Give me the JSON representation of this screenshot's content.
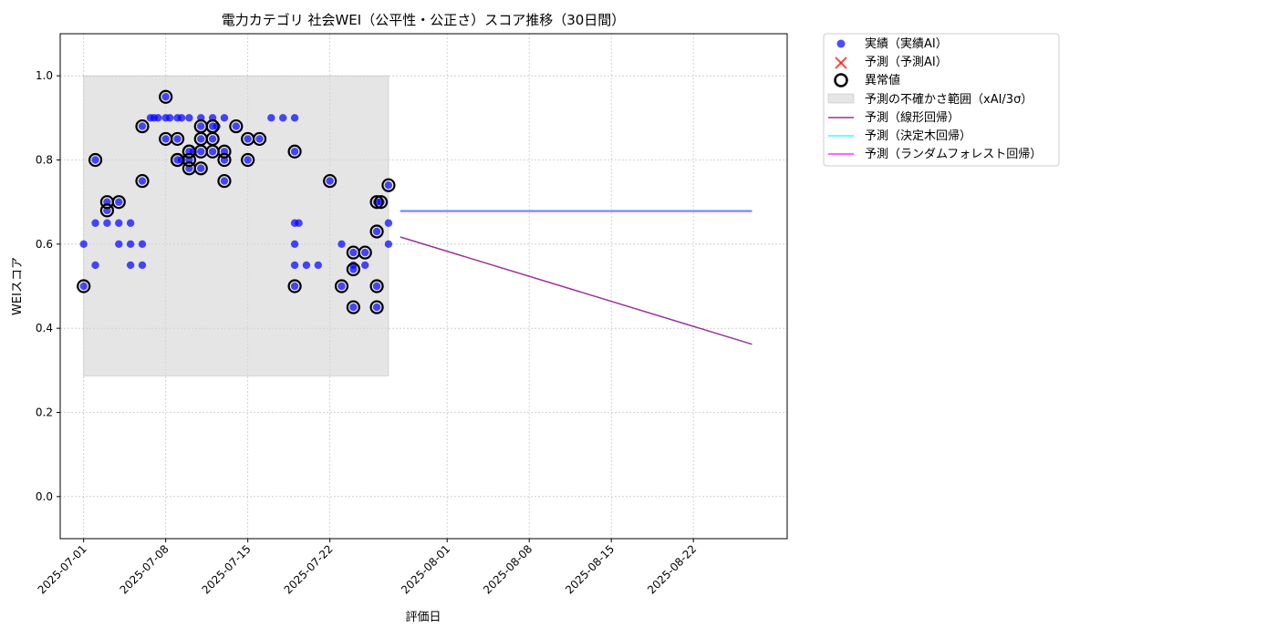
{
  "chart_data": {
    "type": "scatter",
    "title": "電力カテゴリ 社会WEI（公平性・公正さ）スコア推移（30日間）",
    "xlabel": "評価日",
    "ylabel": "WEIスコア",
    "x_ticks": [
      "2025-07-01",
      "2025-07-08",
      "2025-07-15",
      "2025-07-22",
      "2025-08-01",
      "2025-08-08",
      "2025-08-15",
      "2025-08-22"
    ],
    "xlim": [
      "2025-06-29",
      "2025-08-30"
    ],
    "ylim": [
      -0.1,
      1.1
    ],
    "y_ticks": [
      "0.0",
      "0.2",
      "0.4",
      "0.6",
      "0.8",
      "1.0"
    ],
    "grid": true,
    "legend_position": "outside-upper-right",
    "legend": {
      "actual": "実績（実績AI）",
      "predicted": "予測（予測AI）",
      "anomaly": "異常値",
      "band": "予測の不確かさ範囲（xAI/3σ）",
      "linear": "予測（線形回帰）",
      "tree": "予測（決定木回帰）",
      "forest": "予測（ランダムフォレスト回帰）"
    },
    "colors": {
      "actual": "#0000ff",
      "predicted": "#ff0000",
      "anomaly": "#000000",
      "band": "#d3d3d3",
      "linear": "#800080",
      "tree": "#00ffff",
      "forest": "#ff00ff"
    },
    "uncertainty_band": {
      "x": [
        "2025-07-01",
        "2025-07-27"
      ],
      "y": [
        0.287,
        1.0
      ]
    },
    "series": [
      {
        "name": "実績（実績AI）",
        "points": [
          [
            "2025-07-01",
            0.5
          ],
          [
            "2025-07-01",
            0.6
          ],
          [
            "2025-07-02",
            0.8
          ],
          [
            "2025-07-02",
            0.55
          ],
          [
            "2025-07-02",
            0.65
          ],
          [
            "2025-07-03",
            0.68
          ],
          [
            "2025-07-03",
            0.7
          ],
          [
            "2025-07-03",
            0.65
          ],
          [
            "2025-07-04",
            0.6
          ],
          [
            "2025-07-04",
            0.7
          ],
          [
            "2025-07-04",
            0.65
          ],
          [
            "2025-07-05",
            0.55
          ],
          [
            "2025-07-05",
            0.65
          ],
          [
            "2025-07-05",
            0.6
          ],
          [
            "2025-07-06",
            0.6
          ],
          [
            "2025-07-06",
            0.75
          ],
          [
            "2025-07-06",
            0.55
          ],
          [
            "2025-07-06",
            0.88
          ],
          [
            "2025-07-07",
            0.9
          ],
          [
            "2025-07-07",
            0.9
          ],
          [
            "2025-07-07",
            0.9
          ],
          [
            "2025-07-08",
            0.9
          ],
          [
            "2025-07-08",
            0.9
          ],
          [
            "2025-07-08",
            0.95
          ],
          [
            "2025-07-08",
            0.85
          ],
          [
            "2025-07-09",
            0.9
          ],
          [
            "2025-07-09",
            0.8
          ],
          [
            "2025-07-09",
            0.85
          ],
          [
            "2025-07-09",
            0.9
          ],
          [
            "2025-07-09",
            0.8
          ],
          [
            "2025-07-10",
            0.82
          ],
          [
            "2025-07-10",
            0.8
          ],
          [
            "2025-07-10",
            0.78
          ],
          [
            "2025-07-10",
            0.82
          ],
          [
            "2025-07-10",
            0.9
          ],
          [
            "2025-07-11",
            0.9
          ],
          [
            "2025-07-11",
            0.88
          ],
          [
            "2025-07-11",
            0.85
          ],
          [
            "2025-07-11",
            0.78
          ],
          [
            "2025-07-11",
            0.82
          ],
          [
            "2025-07-12",
            0.85
          ],
          [
            "2025-07-12",
            0.82
          ],
          [
            "2025-07-12",
            0.88
          ],
          [
            "2025-07-12",
            0.9
          ],
          [
            "2025-07-12",
            0.88
          ],
          [
            "2025-07-13",
            0.9
          ],
          [
            "2025-07-13",
            0.82
          ],
          [
            "2025-07-13",
            0.75
          ],
          [
            "2025-07-13",
            0.8
          ],
          [
            "2025-07-14",
            0.88
          ],
          [
            "2025-07-15",
            0.85
          ],
          [
            "2025-07-15",
            0.8
          ],
          [
            "2025-07-16",
            0.85
          ],
          [
            "2025-07-17",
            0.9
          ],
          [
            "2025-07-18",
            0.9
          ],
          [
            "2025-07-19",
            0.9
          ],
          [
            "2025-07-19",
            0.82
          ],
          [
            "2025-07-19",
            0.65
          ],
          [
            "2025-07-19",
            0.6
          ],
          [
            "2025-07-19",
            0.55
          ],
          [
            "2025-07-19",
            0.5
          ],
          [
            "2025-07-19",
            0.65
          ],
          [
            "2025-07-20",
            0.55
          ],
          [
            "2025-07-21",
            0.55
          ],
          [
            "2025-07-22",
            0.75
          ],
          [
            "2025-07-23",
            0.6
          ],
          [
            "2025-07-23",
            0.5
          ],
          [
            "2025-07-24",
            0.45
          ],
          [
            "2025-07-24",
            0.58
          ],
          [
            "2025-07-24",
            0.55
          ],
          [
            "2025-07-24",
            0.54
          ],
          [
            "2025-07-25",
            0.58
          ],
          [
            "2025-07-25",
            0.55
          ],
          [
            "2025-07-26",
            0.63
          ],
          [
            "2025-07-26",
            0.5
          ],
          [
            "2025-07-26",
            0.45
          ],
          [
            "2025-07-26",
            0.7
          ],
          [
            "2025-07-26",
            0.7
          ],
          [
            "2025-07-27",
            0.74
          ],
          [
            "2025-07-27",
            0.65
          ],
          [
            "2025-07-27",
            0.6
          ]
        ]
      },
      {
        "name": "異常値",
        "points": [
          [
            "2025-07-01",
            0.5
          ],
          [
            "2025-07-02",
            0.8
          ],
          [
            "2025-07-03",
            0.68
          ],
          [
            "2025-07-03",
            0.7
          ],
          [
            "2025-07-04",
            0.7
          ],
          [
            "2025-07-06",
            0.75
          ],
          [
            "2025-07-06",
            0.88
          ],
          [
            "2025-07-08",
            0.95
          ],
          [
            "2025-07-08",
            0.85
          ],
          [
            "2025-07-09",
            0.8
          ],
          [
            "2025-07-09",
            0.85
          ],
          [
            "2025-07-09",
            0.8
          ],
          [
            "2025-07-10",
            0.82
          ],
          [
            "2025-07-10",
            0.8
          ],
          [
            "2025-07-10",
            0.78
          ],
          [
            "2025-07-10",
            0.82
          ],
          [
            "2025-07-11",
            0.88
          ],
          [
            "2025-07-11",
            0.85
          ],
          [
            "2025-07-11",
            0.78
          ],
          [
            "2025-07-11",
            0.82
          ],
          [
            "2025-07-12",
            0.85
          ],
          [
            "2025-07-12",
            0.82
          ],
          [
            "2025-07-12",
            0.88
          ],
          [
            "2025-07-12",
            0.88
          ],
          [
            "2025-07-13",
            0.82
          ],
          [
            "2025-07-13",
            0.75
          ],
          [
            "2025-07-13",
            0.8
          ],
          [
            "2025-07-14",
            0.88
          ],
          [
            "2025-07-15",
            0.85
          ],
          [
            "2025-07-15",
            0.8
          ],
          [
            "2025-07-16",
            0.85
          ],
          [
            "2025-07-19",
            0.82
          ],
          [
            "2025-07-19",
            0.5
          ],
          [
            "2025-07-22",
            0.75
          ],
          [
            "2025-07-23",
            0.5
          ],
          [
            "2025-07-24",
            0.45
          ],
          [
            "2025-07-24",
            0.58
          ],
          [
            "2025-07-24",
            0.54
          ],
          [
            "2025-07-25",
            0.58
          ],
          [
            "2025-07-26",
            0.63
          ],
          [
            "2025-07-26",
            0.5
          ],
          [
            "2025-07-26",
            0.45
          ],
          [
            "2025-07-26",
            0.7
          ],
          [
            "2025-07-27",
            0.74
          ],
          [
            "2025-07-27",
            0.7
          ]
        ]
      },
      {
        "name": "予測（線形回帰）",
        "points": [
          [
            "2025-07-28",
            0.617
          ],
          [
            "2025-08-27",
            0.362
          ]
        ]
      },
      {
        "name": "予測（決定木回帰）",
        "points": [
          [
            "2025-07-28",
            0.68
          ],
          [
            "2025-08-27",
            0.68
          ]
        ]
      },
      {
        "name": "予測（ランダムフォレスト回帰）",
        "points": [
          [
            "2025-07-28",
            0.678
          ],
          [
            "2025-08-27",
            0.678
          ]
        ]
      }
    ]
  }
}
